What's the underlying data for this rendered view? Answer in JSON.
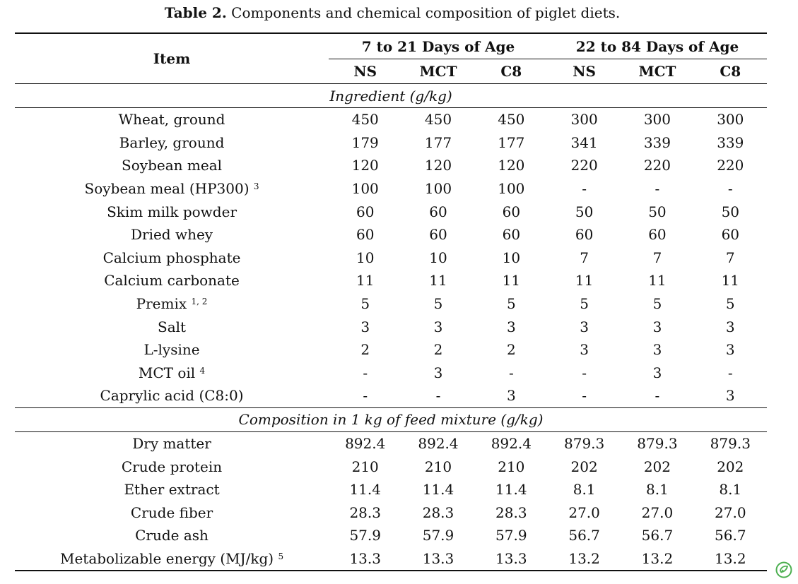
{
  "caption": {
    "label": "Table 2.",
    "text": " Components and chemical composition of piglet diets."
  },
  "header": {
    "item": "Item",
    "group1": "7 to 21 Days of Age",
    "group2": "22 to 84 Days of Age",
    "subcols": [
      "NS",
      "MCT",
      "C8",
      "NS",
      "MCT",
      "C8"
    ]
  },
  "sections": [
    {
      "title": "Ingredient (g/kg)",
      "rows": [
        {
          "label": "Wheat, ground",
          "sup": "",
          "values": [
            "450",
            "450",
            "450",
            "300",
            "300",
            "300"
          ]
        },
        {
          "label": "Barley, ground",
          "sup": "",
          "values": [
            "179",
            "177",
            "177",
            "341",
            "339",
            "339"
          ]
        },
        {
          "label": "Soybean meal",
          "sup": "",
          "values": [
            "120",
            "120",
            "120",
            "220",
            "220",
            "220"
          ]
        },
        {
          "label": "Soybean meal (HP300)",
          "sup": "3",
          "values": [
            "100",
            "100",
            "100",
            "-",
            "-",
            "-"
          ]
        },
        {
          "label": "Skim milk powder",
          "sup": "",
          "values": [
            "60",
            "60",
            "60",
            "50",
            "50",
            "50"
          ]
        },
        {
          "label": "Dried whey",
          "sup": "",
          "values": [
            "60",
            "60",
            "60",
            "60",
            "60",
            "60"
          ]
        },
        {
          "label": "Calcium phosphate",
          "sup": "",
          "values": [
            "10",
            "10",
            "10",
            "7",
            "7",
            "7"
          ]
        },
        {
          "label": "Calcium carbonate",
          "sup": "",
          "values": [
            "11",
            "11",
            "11",
            "11",
            "11",
            "11"
          ]
        },
        {
          "label": "Premix",
          "sup": "1, 2",
          "values": [
            "5",
            "5",
            "5",
            "5",
            "5",
            "5"
          ]
        },
        {
          "label": "Salt",
          "sup": "",
          "values": [
            "3",
            "3",
            "3",
            "3",
            "3",
            "3"
          ]
        },
        {
          "label": "L-lysine",
          "sup": "",
          "values": [
            "2",
            "2",
            "2",
            "3",
            "3",
            "3"
          ]
        },
        {
          "label": "MCT oil",
          "sup": "4",
          "values": [
            "-",
            "3",
            "-",
            "-",
            "3",
            "-"
          ]
        },
        {
          "label": "Caprylic acid (C8:0)",
          "sup": "",
          "values": [
            "-",
            "-",
            "3",
            "-",
            "-",
            "3"
          ]
        }
      ]
    },
    {
      "title": "Composition in 1 kg of feed mixture (g/kg)",
      "rows": [
        {
          "label": "Dry matter",
          "sup": "",
          "values": [
            "892.4",
            "892.4",
            "892.4",
            "879.3",
            "879.3",
            "879.3"
          ]
        },
        {
          "label": "Crude protein",
          "sup": "",
          "values": [
            "210",
            "210",
            "210",
            "202",
            "202",
            "202"
          ]
        },
        {
          "label": "Ether extract",
          "sup": "",
          "values": [
            "11.4",
            "11.4",
            "11.4",
            "8.1",
            "8.1",
            "8.1"
          ]
        },
        {
          "label": "Crude fiber",
          "sup": "",
          "values": [
            "28.3",
            "28.3",
            "28.3",
            "27.0",
            "27.0",
            "27.0"
          ]
        },
        {
          "label": "Crude ash",
          "sup": "",
          "values": [
            "57.9",
            "57.9",
            "57.9",
            "56.7",
            "56.7",
            "56.7"
          ]
        },
        {
          "label": "Metabolizable energy (MJ/kg)",
          "sup": "5",
          "values": [
            "13.3",
            "13.3",
            "13.3",
            "13.2",
            "13.2",
            "13.2"
          ]
        }
      ]
    }
  ],
  "colors": {
    "text": "#111111",
    "logo": "#4caf50"
  },
  "logo_icon": "leaf-check-icon"
}
